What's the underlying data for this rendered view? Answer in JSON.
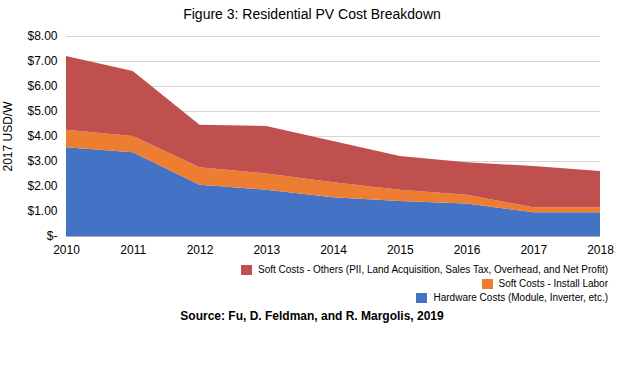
{
  "chart_data": {
    "type": "area",
    "stacked": true,
    "title": "Figure 3:  Residential PV Cost Breakdown",
    "ylabel": "2017 USD/W",
    "source": "Source: Fu, D. Feldman, and R. Margolis, 2019",
    "x": [
      2010,
      2011,
      2012,
      2013,
      2014,
      2015,
      2016,
      2017,
      2018
    ],
    "series": [
      {
        "name": "Hardware Costs (Module, Inverter, etc.)",
        "color": "#4472C4",
        "values": [
          3.55,
          3.35,
          2.05,
          1.85,
          1.55,
          1.4,
          1.3,
          0.95,
          0.95
        ]
      },
      {
        "name": "Soft Costs - Install Labor",
        "color": "#ED7D31",
        "values": [
          0.7,
          0.65,
          0.7,
          0.65,
          0.6,
          0.45,
          0.35,
          0.2,
          0.2
        ]
      },
      {
        "name": "Soft Costs - Others (PII, Land Acquisition, Sales Tax, Overhead, and Net Profit)",
        "color": "#C0504D",
        "values": [
          2.95,
          2.6,
          1.7,
          1.9,
          1.65,
          1.35,
          1.3,
          1.65,
          1.45
        ]
      }
    ],
    "xlim": [
      2010,
      2018
    ],
    "xticks": [
      2010,
      2011,
      2012,
      2013,
      2014,
      2015,
      2016,
      2017,
      2018
    ],
    "ylim": [
      0,
      8.0
    ],
    "yticks": [
      {
        "value": 0,
        "label": "$-"
      },
      {
        "value": 1.0,
        "label": "$1.00"
      },
      {
        "value": 2.0,
        "label": "$2.00"
      },
      {
        "value": 3.0,
        "label": "$3.00"
      },
      {
        "value": 4.0,
        "label": "$4.00"
      },
      {
        "value": 5.0,
        "label": "$5.00"
      },
      {
        "value": 6.0,
        "label": "$6.00"
      },
      {
        "value": 7.0,
        "label": "$7.00"
      },
      {
        "value": 8.0,
        "label": "$8.00"
      }
    ],
    "grid": true,
    "legend": "lower right"
  }
}
